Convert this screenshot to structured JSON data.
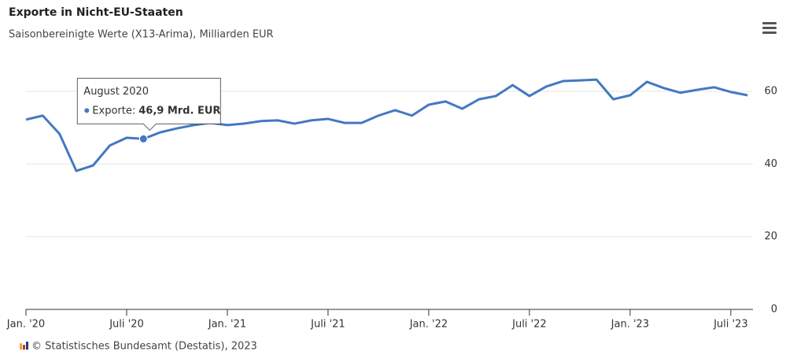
{
  "chart_data": {
    "type": "line",
    "title": "Exporte in Nicht-EU-Staaten",
    "subtitle": "Saisonbereinigte Werte (X13-Arima), Milliarden EUR",
    "categories": [
      "Jan. '20",
      null,
      null,
      null,
      null,
      null,
      "Juli '20",
      null,
      null,
      null,
      null,
      null,
      "Jan. '21",
      null,
      null,
      null,
      null,
      null,
      "Juli '21",
      null,
      null,
      null,
      null,
      null,
      "Jan. '22",
      null,
      null,
      null,
      null,
      null,
      "Juli '22",
      null,
      null,
      null,
      null,
      null,
      "Jan. '23",
      null,
      null,
      null,
      null,
      null,
      "Juli '23",
      null
    ],
    "values": [
      52.2,
      53.3,
      48.3,
      38.1,
      39.6,
      45.1,
      47.2,
      46.9,
      48.7,
      49.8,
      50.7,
      51.3,
      50.7,
      51.1,
      51.8,
      52.0,
      51.1,
      52.0,
      52.4,
      51.3,
      51.3,
      53.3,
      54.8,
      53.3,
      56.3,
      57.2,
      55.2,
      57.8,
      58.7,
      61.7,
      58.7,
      61.3,
      62.8,
      63.0,
      63.2,
      57.8,
      58.9,
      62.6,
      60.9,
      59.6,
      60.4,
      61.1,
      59.8,
      58.9
    ],
    "color": "#4478c2",
    "ylim": [
      0,
      68
    ],
    "yticks": [
      0,
      20,
      40,
      60
    ],
    "grid": true,
    "tooltip": {
      "title": "August 2020",
      "label": "Exporte:",
      "value": 46.9,
      "value_label": "46,9 Mrd. EUR"
    },
    "credit": "© Statistisches Bundesamt (Destatis), 2023"
  }
}
